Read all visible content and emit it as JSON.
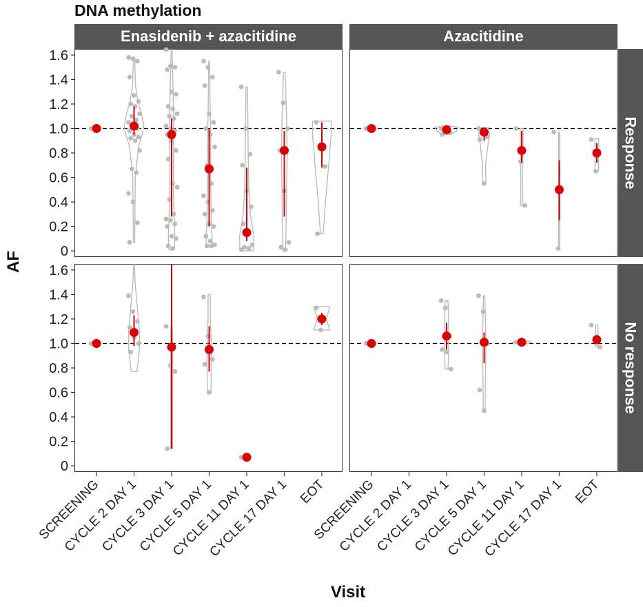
{
  "title": "DNA methylation",
  "facets": {
    "columns": [
      "Enasidenib + azacitidine",
      "Azacitidine"
    ],
    "rows": [
      "Response",
      "No response"
    ]
  },
  "axes": {
    "xlabel": "Visit",
    "ylabel": "AF",
    "yticks": [
      "0",
      "0.2",
      "0.4",
      "0.6",
      "0.8",
      "1.0",
      "1.2",
      "1.4",
      "1.6"
    ],
    "xticks": [
      "SCREENING",
      "CYCLE 2 DAY 1",
      "CYCLE 3 DAY 1",
      "CYCLE 5 DAY 1",
      "CYCLE 11 DAY 1",
      "CYCLE 17 DAY 1",
      "EOT"
    ]
  },
  "colors": {
    "strip": "#555555",
    "points": "#bbbbbb",
    "violin": "#bbbbbb",
    "mean": "#dd0000",
    "reference_line": "#000000"
  },
  "chart_data": {
    "type": "scatter",
    "subtype": "violin with jittered points and mean ± error bars",
    "ylim": [
      -0.05,
      1.65
    ],
    "reference_y": 1.0,
    "grid": false,
    "panels": [
      {
        "column": "Enasidenib + azacitidine",
        "row": "Response",
        "groups": [
          {
            "visit": "SCREENING",
            "mean": 1.0,
            "lo": 1.0,
            "hi": 1.0,
            "points": [
              1.0
            ],
            "violin": null
          },
          {
            "visit": "CYCLE 2 DAY 1",
            "mean": 1.02,
            "lo": 0.95,
            "hi": 1.18,
            "points": [
              1.58,
              1.57,
              1.55,
              1.42,
              1.27,
              1.22,
              1.2,
              1.18,
              1.12,
              1.1,
              1.07,
              1.05,
              1.02,
              1.0,
              0.98,
              0.95,
              0.93,
              0.92,
              0.9,
              0.82,
              0.67,
              0.64,
              0.47,
              0.4,
              0.23,
              0.07
            ],
            "violin": [
              [
                0.07,
                0.04
              ],
              [
                0.3,
                0.05
              ],
              [
                0.6,
                0.07
              ],
              [
                0.85,
                0.25
              ],
              [
                0.95,
                0.45
              ],
              [
                1.02,
                0.55
              ],
              [
                1.12,
                0.42
              ],
              [
                1.22,
                0.22
              ],
              [
                1.35,
                0.08
              ],
              [
                1.5,
                0.05
              ],
              [
                1.58,
                0.04
              ]
            ]
          },
          {
            "visit": "CYCLE 3 DAY 1",
            "mean": 0.95,
            "lo": 0.28,
            "hi": 1.08,
            "points": [
              1.65,
              1.51,
              1.5,
              1.48,
              1.3,
              1.28,
              1.18,
              1.16,
              1.12,
              1.1,
              1.08,
              1.02,
              1.0,
              0.98,
              0.95,
              0.9,
              0.82,
              0.75,
              0.55,
              0.52,
              0.42,
              0.3,
              0.26,
              0.25,
              0.22,
              0.2,
              0.12,
              0.1,
              0.04,
              0.02
            ],
            "violin": [
              [
                0.01,
                0.15
              ],
              [
                0.1,
                0.18
              ],
              [
                0.3,
                0.14
              ],
              [
                0.5,
                0.1
              ],
              [
                0.7,
                0.1
              ],
              [
                0.9,
                0.12
              ],
              [
                1.1,
                0.11
              ],
              [
                1.3,
                0.08
              ],
              [
                1.5,
                0.05
              ],
              [
                1.65,
                0.02
              ]
            ]
          },
          {
            "visit": "CYCLE 5 DAY 1",
            "mean": 0.67,
            "lo": 0.2,
            "hi": 1.0,
            "points": [
              1.55,
              1.5,
              1.42,
              1.35,
              1.12,
              1.05,
              1.0,
              0.95,
              0.85,
              0.7,
              0.55,
              0.45,
              0.4,
              0.33,
              0.3,
              0.22,
              0.2,
              0.12,
              0.08,
              0.05,
              0.04,
              0.04
            ],
            "violin": [
              [
                0.04,
                0.18
              ],
              [
                0.2,
                0.14
              ],
              [
                0.4,
                0.1
              ],
              [
                0.6,
                0.08
              ],
              [
                0.8,
                0.08
              ],
              [
                1.0,
                0.08
              ],
              [
                1.2,
                0.05
              ],
              [
                1.4,
                0.04
              ],
              [
                1.55,
                0.02
              ]
            ]
          },
          {
            "visit": "CYCLE 11 DAY 1",
            "mean": 0.15,
            "lo": 0.08,
            "hi": 0.68,
            "points": [
              1.34,
              1.0,
              0.79,
              0.7,
              0.49,
              0.36,
              0.22,
              0.15,
              0.05,
              0.03,
              0.02,
              0.01
            ],
            "violin": [
              [
                0.0,
                0.38
              ],
              [
                0.12,
                0.4
              ],
              [
                0.3,
                0.2
              ],
              [
                0.5,
                0.12
              ],
              [
                0.8,
                0.08
              ],
              [
                1.1,
                0.06
              ],
              [
                1.34,
                0.04
              ]
            ]
          },
          {
            "visit": "CYCLE 17 DAY 1",
            "mean": 0.82,
            "lo": 0.28,
            "hi": 0.98,
            "points": [
              1.46,
              1.21,
              1.0,
              0.82,
              0.49,
              0.07,
              0.03,
              0.01
            ],
            "violin": [
              [
                0.0,
                0.07
              ],
              [
                0.2,
                0.1
              ],
              [
                0.5,
                0.13
              ],
              [
                0.8,
                0.16
              ],
              [
                1.0,
                0.14
              ],
              [
                1.2,
                0.1
              ],
              [
                1.46,
                0.05
              ]
            ]
          },
          {
            "visit": "EOT",
            "mean": 0.85,
            "lo": 0.68,
            "hi": 1.05,
            "points": [
              1.05,
              0.85,
              0.69,
              0.14
            ],
            "violin": [
              [
                0.14,
                0.08
              ],
              [
                0.4,
                0.2
              ],
              [
                0.7,
                0.38
              ],
              [
                0.95,
                0.52
              ],
              [
                1.06,
                0.52
              ]
            ]
          }
        ]
      },
      {
        "column": "Azacitidine",
        "row": "Response",
        "groups": [
          {
            "visit": "SCREENING",
            "mean": 1.0,
            "lo": 1.0,
            "hi": 1.0,
            "points": [
              1.0
            ],
            "violin": null
          },
          {
            "visit": "CYCLE 3 DAY 1",
            "mean": 0.99,
            "lo": 0.97,
            "hi": 1.01,
            "points": [
              1.0,
              0.99,
              0.97,
              0.95
            ],
            "violin": [
              [
                0.95,
                0.2
              ],
              [
                0.98,
                0.55
              ],
              [
                1.01,
                0.65
              ],
              [
                1.02,
                0.2
              ]
            ]
          },
          {
            "visit": "CYCLE 5 DAY 1",
            "mean": 0.97,
            "lo": 0.9,
            "hi": 1.0,
            "points": [
              1.0,
              0.97,
              0.93,
              0.91,
              0.55
            ],
            "violin": [
              [
                0.55,
                0.1
              ],
              [
                0.7,
                0.08
              ],
              [
                0.85,
                0.2
              ],
              [
                0.95,
                0.3
              ],
              [
                1.01,
                0.25
              ]
            ]
          },
          {
            "visit": "CYCLE 11 DAY 1",
            "mean": 0.82,
            "lo": 0.72,
            "hi": 0.98,
            "points": [
              1.0,
              0.73,
              0.37
            ],
            "violin": [
              [
                0.37,
                0.06
              ],
              [
                0.6,
                0.05
              ],
              [
                0.8,
                0.07
              ],
              [
                1.0,
                0.08
              ]
            ]
          },
          {
            "visit": "CYCLE 17 DAY 1",
            "mean": 0.5,
            "lo": 0.25,
            "hi": 0.74,
            "points": [
              0.97,
              0.02
            ],
            "violin": [
              [
                0.02,
                0.03
              ],
              [
                0.5,
                0.03
              ],
              [
                0.97,
                0.03
              ]
            ]
          },
          {
            "visit": "EOT",
            "mean": 0.8,
            "lo": 0.72,
            "hi": 0.88,
            "points": [
              0.91,
              0.65
            ],
            "violin": [
              [
                0.65,
                0.1
              ],
              [
                0.78,
                0.1
              ],
              [
                0.92,
                0.1
              ]
            ]
          }
        ]
      },
      {
        "column": "Enasidenib + azacitidine",
        "row": "No response",
        "groups": [
          {
            "visit": "SCREENING",
            "mean": 1.0,
            "lo": 1.0,
            "hi": 1.0,
            "points": [
              1.0
            ],
            "violin": null
          },
          {
            "visit": "CYCLE 2 DAY 1",
            "mean": 1.09,
            "lo": 0.98,
            "hi": 1.23,
            "points": [
              1.39,
              1.26,
              1.18,
              1.13,
              1.05,
              1.0,
              0.93
            ],
            "violin": [
              [
                0.77,
                0.16
              ],
              [
                0.95,
                0.3
              ],
              [
                1.1,
                0.3
              ],
              [
                1.3,
                0.18
              ],
              [
                1.5,
                0.06
              ],
              [
                1.65,
                0.02
              ]
            ]
          },
          {
            "visit": "CYCLE 3 DAY 1",
            "mean": 0.97,
            "lo": 0.14,
            "hi": 1.65,
            "points": [
              1.14,
              0.82,
              0.77,
              0.14
            ],
            "violin": [
              [
                0.14,
                0.05
              ],
              [
                0.5,
                0.05
              ],
              [
                0.77,
                0.06
              ],
              [
                1.0,
                0.06
              ],
              [
                1.14,
                0.04
              ]
            ]
          },
          {
            "visit": "CYCLE 5 DAY 1",
            "mean": 0.95,
            "lo": 0.77,
            "hi": 1.14,
            "points": [
              1.38,
              1.06,
              0.87,
              0.83,
              0.6
            ],
            "violin": [
              [
                0.6,
                0.1
              ],
              [
                0.8,
                0.12
              ],
              [
                1.0,
                0.12
              ],
              [
                1.2,
                0.06
              ],
              [
                1.4,
                0.06
              ]
            ]
          },
          {
            "visit": "CYCLE 11 DAY 1",
            "mean": 0.07,
            "lo": 0.07,
            "hi": 0.07,
            "points": [
              0.07
            ],
            "violin": null
          },
          {
            "visit": "EOT",
            "mean": 1.2,
            "lo": 1.15,
            "hi": 1.25,
            "points": [
              1.29,
              1.11
            ],
            "violin": [
              [
                1.11,
                0.45
              ],
              [
                1.2,
                0.25
              ],
              [
                1.3,
                0.45
              ]
            ]
          }
        ]
      },
      {
        "column": "Azacitidine",
        "row": "No response",
        "groups": [
          {
            "visit": "SCREENING",
            "mean": 1.0,
            "lo": 1.0,
            "hi": 1.0,
            "points": [
              1.0
            ],
            "violin": null
          },
          {
            "visit": "CYCLE 3 DAY 1",
            "mean": 1.06,
            "lo": 0.95,
            "hi": 1.17,
            "points": [
              1.35,
              1.29,
              1.06,
              0.95,
              0.93,
              0.79
            ],
            "violin": [
              [
                0.79,
                0.08
              ],
              [
                0.95,
                0.12
              ],
              [
                1.1,
                0.1
              ],
              [
                1.3,
                0.1
              ],
              [
                1.35,
                0.06
              ]
            ]
          },
          {
            "visit": "CYCLE 5 DAY 1",
            "mean": 1.01,
            "lo": 0.84,
            "hi": 1.09,
            "points": [
              1.39,
              1.26,
              1.0,
              0.62,
              0.45
            ],
            "violin": [
              [
                0.45,
                0.05
              ],
              [
                0.7,
                0.07
              ],
              [
                1.0,
                0.1
              ],
              [
                1.2,
                0.07
              ],
              [
                1.39,
                0.04
              ]
            ]
          },
          {
            "visit": "CYCLE 11 DAY 1",
            "mean": 1.01,
            "lo": 1.0,
            "hi": 1.02,
            "points": [
              1.01,
              1.01
            ],
            "violin": [
              [
                1.0,
                0.35
              ],
              [
                1.01,
                0.55
              ],
              [
                1.02,
                0.35
              ]
            ]
          },
          {
            "visit": "EOT",
            "mean": 1.03,
            "lo": 1.0,
            "hi": 1.07,
            "points": [
              1.15,
              1.05,
              0.97
            ],
            "violin": [
              [
                0.97,
                0.06
              ],
              [
                1.05,
                0.08
              ],
              [
                1.15,
                0.06
              ]
            ]
          }
        ]
      }
    ]
  }
}
